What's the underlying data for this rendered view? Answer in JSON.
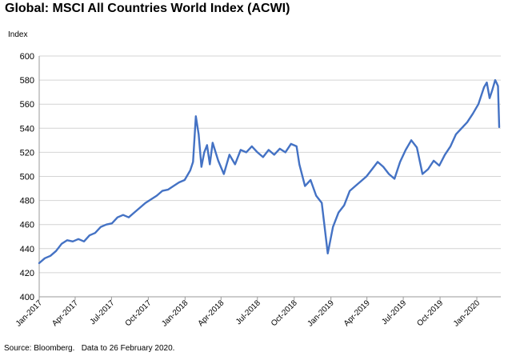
{
  "title": "Global: MSCI All Countries World Index (ACWI)",
  "source": "Source: Bloomberg.   Data to 26 February 2020.",
  "chart_data": {
    "type": "line",
    "title": "Global: MSCI All Countries World Index (ACWI)",
    "ylabel": "Index",
    "xlabel": "",
    "ylim": [
      400,
      600
    ],
    "yticks": [
      400,
      420,
      440,
      460,
      480,
      500,
      520,
      540,
      560,
      580,
      600
    ],
    "xlim": [
      "2017-01-01",
      "2020-03-01"
    ],
    "xticks": [
      {
        "label": "Jan-2017",
        "date": "2017-01-01"
      },
      {
        "label": "Apr-2017",
        "date": "2017-04-01"
      },
      {
        "label": "Jul-2017",
        "date": "2017-07-01"
      },
      {
        "label": "Oct-2017",
        "date": "2017-10-01"
      },
      {
        "label": "Jan-2018",
        "date": "2018-01-01"
      },
      {
        "label": "Apr-2018",
        "date": "2018-04-01"
      },
      {
        "label": "Jul-2018",
        "date": "2018-07-01"
      },
      {
        "label": "Oct-2018",
        "date": "2018-10-01"
      },
      {
        "label": "Jan-2019",
        "date": "2019-01-01"
      },
      {
        "label": "Apr-2019",
        "date": "2019-04-01"
      },
      {
        "label": "Jul-2019",
        "date": "2019-07-01"
      },
      {
        "label": "Oct-2019",
        "date": "2019-10-01"
      },
      {
        "label": "Jan-2020",
        "date": "2020-01-01"
      }
    ],
    "grid": "horizontal",
    "line_color": "#4472C4",
    "series": [
      {
        "points": [
          [
            "2017-01-01",
            428
          ],
          [
            "2017-01-15",
            432
          ],
          [
            "2017-01-29",
            434
          ],
          [
            "2017-02-12",
            438
          ],
          [
            "2017-02-26",
            444
          ],
          [
            "2017-03-12",
            447
          ],
          [
            "2017-03-26",
            446
          ],
          [
            "2017-04-09",
            448
          ],
          [
            "2017-04-23",
            446
          ],
          [
            "2017-05-07",
            451
          ],
          [
            "2017-05-21",
            453
          ],
          [
            "2017-06-04",
            458
          ],
          [
            "2017-06-18",
            460
          ],
          [
            "2017-07-02",
            461
          ],
          [
            "2017-07-16",
            466
          ],
          [
            "2017-07-30",
            468
          ],
          [
            "2017-08-13",
            466
          ],
          [
            "2017-08-27",
            470
          ],
          [
            "2017-09-10",
            474
          ],
          [
            "2017-09-24",
            478
          ],
          [
            "2017-10-08",
            481
          ],
          [
            "2017-10-22",
            484
          ],
          [
            "2017-11-05",
            488
          ],
          [
            "2017-11-19",
            489
          ],
          [
            "2017-12-03",
            492
          ],
          [
            "2017-12-17",
            495
          ],
          [
            "2017-12-31",
            497
          ],
          [
            "2018-01-14",
            505
          ],
          [
            "2018-01-21",
            512
          ],
          [
            "2018-01-28",
            550
          ],
          [
            "2018-02-04",
            535
          ],
          [
            "2018-02-11",
            508
          ],
          [
            "2018-02-18",
            520
          ],
          [
            "2018-02-25",
            526
          ],
          [
            "2018-03-04",
            510
          ],
          [
            "2018-03-11",
            528
          ],
          [
            "2018-03-25",
            513
          ],
          [
            "2018-04-08",
            502
          ],
          [
            "2018-04-22",
            518
          ],
          [
            "2018-05-06",
            510
          ],
          [
            "2018-05-20",
            522
          ],
          [
            "2018-06-03",
            520
          ],
          [
            "2018-06-17",
            525
          ],
          [
            "2018-07-01",
            520
          ],
          [
            "2018-07-15",
            516
          ],
          [
            "2018-07-29",
            522
          ],
          [
            "2018-08-12",
            518
          ],
          [
            "2018-08-26",
            523
          ],
          [
            "2018-09-09",
            520
          ],
          [
            "2018-09-23",
            527
          ],
          [
            "2018-10-07",
            525
          ],
          [
            "2018-10-14",
            510
          ],
          [
            "2018-10-28",
            492
          ],
          [
            "2018-11-11",
            497
          ],
          [
            "2018-11-25",
            484
          ],
          [
            "2018-12-09",
            478
          ],
          [
            "2018-12-24",
            436
          ],
          [
            "2019-01-06",
            458
          ],
          [
            "2019-01-20",
            470
          ],
          [
            "2019-02-03",
            476
          ],
          [
            "2019-02-17",
            488
          ],
          [
            "2019-03-03",
            492
          ],
          [
            "2019-03-17",
            496
          ],
          [
            "2019-03-31",
            500
          ],
          [
            "2019-04-14",
            506
          ],
          [
            "2019-04-28",
            512
          ],
          [
            "2019-05-12",
            508
          ],
          [
            "2019-05-26",
            502
          ],
          [
            "2019-06-09",
            498
          ],
          [
            "2019-06-23",
            512
          ],
          [
            "2019-07-07",
            522
          ],
          [
            "2019-07-21",
            530
          ],
          [
            "2019-08-04",
            524
          ],
          [
            "2019-08-18",
            502
          ],
          [
            "2019-09-01",
            506
          ],
          [
            "2019-09-15",
            513
          ],
          [
            "2019-09-29",
            509
          ],
          [
            "2019-10-13",
            518
          ],
          [
            "2019-10-27",
            525
          ],
          [
            "2019-11-10",
            535
          ],
          [
            "2019-11-24",
            540
          ],
          [
            "2019-12-08",
            545
          ],
          [
            "2019-12-22",
            552
          ],
          [
            "2020-01-05",
            560
          ],
          [
            "2020-01-19",
            574
          ],
          [
            "2020-01-26",
            578
          ],
          [
            "2020-02-02",
            565
          ],
          [
            "2020-02-09",
            572
          ],
          [
            "2020-02-16",
            580
          ],
          [
            "2020-02-19",
            578
          ],
          [
            "2020-02-23",
            575
          ],
          [
            "2020-02-26",
            541
          ]
        ]
      }
    ]
  }
}
